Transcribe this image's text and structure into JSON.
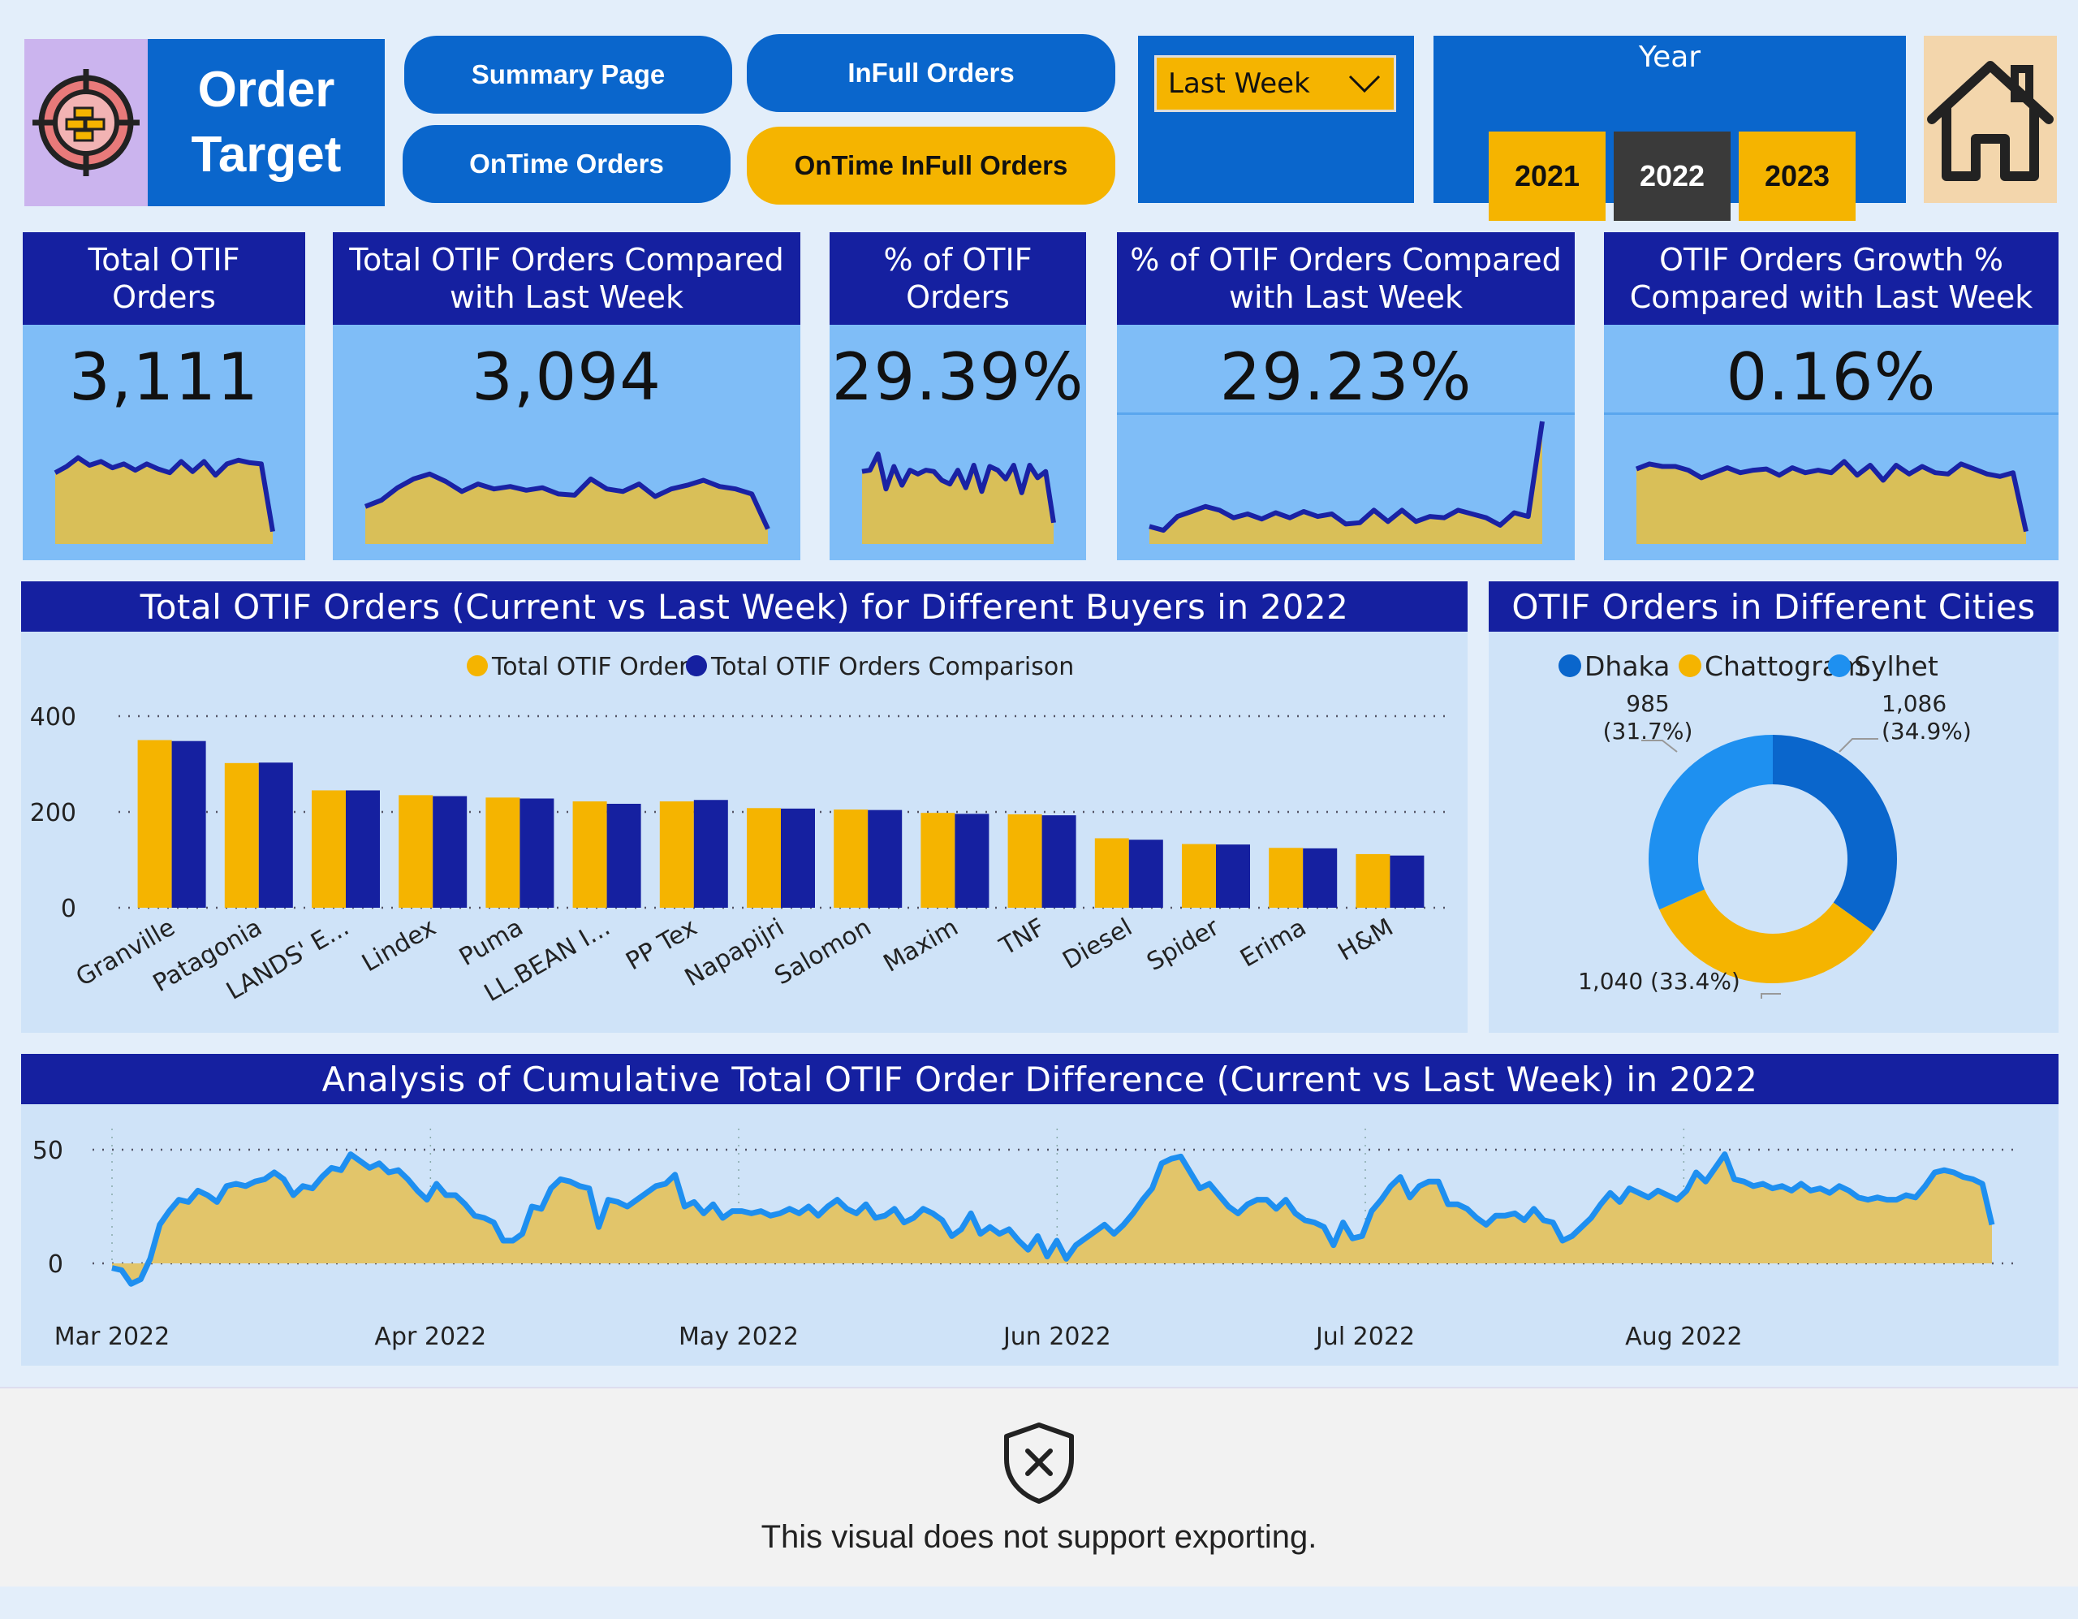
{
  "header": {
    "title_line1": "Order",
    "title_line2": "Target",
    "nav": {
      "summary": "Summary Page",
      "infull": "InFull Orders",
      "ontime": "OnTime Orders",
      "otif": "OnTime InFull Orders"
    },
    "period_select": "Last Week",
    "year_label": "Year",
    "years": [
      "2021",
      "2022",
      "2023"
    ],
    "selected_year": "2022"
  },
  "kpis": [
    {
      "title": "Total OTIF Orders",
      "value": "3,111"
    },
    {
      "title": "Total OTIF Orders Compared with Last Week",
      "value": "3,094"
    },
    {
      "title": "% of OTIF Orders",
      "value": "29.39%"
    },
    {
      "title": "% of OTIF Orders Compared with Last Week",
      "value": "29.23%"
    },
    {
      "title": "OTIF Orders Growth % Compared with Last Week",
      "value": "0.16%"
    }
  ],
  "sections": {
    "buyers_title": "Total OTIF Orders (Current vs Last Week) for Different Buyers in 2022",
    "cities_title": "OTIF Orders in Different Cities",
    "cumulative_title": "Analysis of Cumulative Total OTIF Order Difference (Current vs Last Week) in 2022"
  },
  "colors": {
    "gold": "#f5b400",
    "navy": "#1520a0",
    "blue": "#0a66cc",
    "light": "#1e90f0",
    "area": "#e2c56a"
  },
  "chart_data": [
    {
      "type": "bar",
      "title": "Total OTIF Orders (Current vs Last Week) for Different Buyers in 2022",
      "categories": [
        "Granville",
        "Patagonia",
        "LANDS' E...",
        "Lindex",
        "Puma",
        "LL.BEAN I...",
        "PP Tex",
        "Napapijri",
        "Salomon",
        "Maxim",
        "TNF",
        "Diesel",
        "Spider",
        "Erima",
        "H&M"
      ],
      "series": [
        {
          "name": "Total OTIF Orders",
          "values": [
            350,
            302,
            245,
            235,
            230,
            222,
            222,
            208,
            205,
            198,
            195,
            145,
            133,
            125,
            112
          ]
        },
        {
          "name": "Total OTIF Orders Comparison",
          "values": [
            348,
            303,
            245,
            233,
            228,
            217,
            225,
            207,
            204,
            196,
            193,
            142,
            132,
            124,
            109
          ]
        }
      ],
      "ylim": [
        0,
        400
      ],
      "yticks": [
        0,
        200,
        400
      ],
      "legend": "top-center",
      "grid": true
    },
    {
      "type": "pie",
      "title": "OTIF Orders in Different Cities",
      "labels": [
        "Dhaka",
        "Chattogram",
        "Sylhet"
      ],
      "values": [
        1086,
        1040,
        985
      ],
      "data_labels": [
        "1,086 (34.9%)",
        "1,040 (33.4%)",
        "985 (31.7%)"
      ],
      "data_label_lines": [
        [
          "1,086",
          "(34.9%)"
        ],
        [
          "1,040 (33.4%)"
        ],
        [
          "985",
          "(31.7%)"
        ]
      ],
      "legend": "top"
    },
    {
      "type": "area",
      "title": "Analysis of Cumulative Total OTIF Order Difference (Current vs Last Week) in 2022",
      "x_ticks": [
        "Mar 2022",
        "Apr 2022",
        "May 2022",
        "Jun 2022",
        "Jul 2022",
        "Aug 2022"
      ],
      "x_range": [
        "2022-03-01",
        "2022-08-31"
      ],
      "ylim": [
        -10,
        55
      ],
      "yticks": [
        0,
        50
      ],
      "values": [
        -2,
        -3,
        -9,
        -7,
        2,
        17,
        23,
        28,
        27,
        32,
        30,
        27,
        34,
        35,
        34,
        36,
        37,
        40,
        37,
        30,
        34,
        33,
        38,
        42,
        41,
        48,
        45,
        42,
        44,
        40,
        41,
        37,
        32,
        28,
        35,
        30,
        30,
        26,
        21,
        20,
        18,
        10,
        10,
        13,
        25,
        24,
        33,
        37,
        36,
        34,
        33,
        16,
        28,
        27,
        25,
        28,
        31,
        34,
        35,
        39,
        25,
        27,
        22,
        26,
        20,
        23,
        23,
        22,
        23,
        21,
        22,
        24,
        22,
        25,
        21,
        25,
        28,
        24,
        22,
        26,
        20,
        21,
        24,
        18,
        20,
        24,
        22,
        19,
        12,
        15,
        22,
        13,
        16,
        13,
        15,
        10,
        6,
        12,
        3,
        10,
        2,
        8,
        11,
        14,
        17,
        13,
        17,
        22,
        28,
        33,
        44,
        46,
        47,
        40,
        33,
        35,
        30,
        25,
        22,
        26,
        28,
        28,
        24,
        28,
        22,
        19,
        18,
        16,
        8,
        18,
        11,
        12,
        23,
        28,
        34,
        38,
        29,
        34,
        36,
        36,
        26,
        26,
        24,
        20,
        17,
        21,
        21,
        22,
        19,
        24,
        19,
        18,
        10,
        12,
        16,
        20,
        26,
        31,
        27,
        33,
        31,
        29,
        32,
        30,
        28,
        32,
        40,
        36,
        42,
        48,
        37,
        36,
        34,
        35,
        33,
        34,
        32,
        35,
        32,
        33,
        31,
        34,
        32,
        29,
        28,
        29,
        28,
        28,
        30,
        29,
        34,
        40,
        41,
        40,
        38,
        37,
        35,
        17
      ],
      "grid": true
    },
    {
      "type": "area",
      "name": "Total OTIF Orders sparkline",
      "values": [
        57,
        62,
        69,
        63,
        66,
        61,
        64,
        59,
        64,
        60,
        57,
        66,
        58,
        66,
        55,
        64,
        67,
        65,
        64,
        10
      ]
    },
    {
      "type": "area",
      "name": "Total OTIF Orders Compared with Last Week sparkline",
      "values": [
        30,
        35,
        45,
        52,
        56,
        50,
        42,
        48,
        44,
        46,
        43,
        45,
        40,
        39,
        52,
        44,
        42,
        48,
        38,
        44,
        47,
        51,
        46,
        44,
        40,
        12
      ]
    },
    {
      "type": "area",
      "name": "% of OTIF Orders sparkline",
      "values": [
        58,
        59,
        72,
        44,
        62,
        47,
        59,
        56,
        59,
        58,
        51,
        48,
        59,
        45,
        63,
        42,
        62,
        59,
        52,
        63,
        41,
        63,
        53,
        58,
        17
      ]
    },
    {
      "type": "area",
      "name": "% of OTIF Orders Compared with Last Week sparkline",
      "values": [
        14,
        11,
        22,
        26,
        30,
        27,
        21,
        24,
        20,
        25,
        21,
        26,
        22,
        24,
        16,
        17,
        27,
        18,
        27,
        18,
        22,
        21,
        27,
        24,
        21,
        15,
        25,
        22,
        98
      ]
    },
    {
      "type": "area",
      "name": "OTIF Orders Growth % Compared with Last Week sparkline",
      "values": [
        60,
        64,
        62,
        62,
        59,
        53,
        57,
        61,
        57,
        59,
        60,
        55,
        61,
        57,
        59,
        57,
        66,
        55,
        63,
        51,
        63,
        56,
        62,
        57,
        56,
        64,
        60,
        56,
        54,
        57,
        10
      ]
    }
  ],
  "export_notice": "This visual does not support exporting."
}
